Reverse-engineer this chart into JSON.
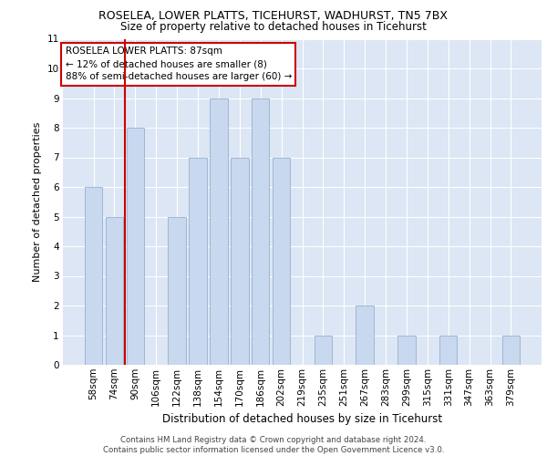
{
  "title1": "ROSELEA, LOWER PLATTS, TICEHURST, WADHURST, TN5 7BX",
  "title2": "Size of property relative to detached houses in Ticehurst",
  "xlabel": "Distribution of detached houses by size in Ticehurst",
  "ylabel": "Number of detached properties",
  "categories": [
    "58sqm",
    "74sqm",
    "90sqm",
    "106sqm",
    "122sqm",
    "138sqm",
    "154sqm",
    "170sqm",
    "186sqm",
    "202sqm",
    "219sqm",
    "235sqm",
    "251sqm",
    "267sqm",
    "283sqm",
    "299sqm",
    "315sqm",
    "331sqm",
    "347sqm",
    "363sqm",
    "379sqm"
  ],
  "values": [
    6,
    5,
    8,
    0,
    5,
    7,
    9,
    7,
    9,
    7,
    0,
    1,
    0,
    2,
    0,
    1,
    0,
    1,
    0,
    0,
    1
  ],
  "bar_color": "#c8d8ee",
  "bar_edgecolor": "#9ab0cc",
  "vline_color": "#cc0000",
  "vline_x": 1.5,
  "background_color": "#ffffff",
  "plot_bg_color": "#dce6f5",
  "grid_color": "#ffffff",
  "annotation_text": "ROSELEA LOWER PLATTS: 87sqm\n← 12% of detached houses are smaller (8)\n88% of semi-detached houses are larger (60) →",
  "annotation_box_edgecolor": "#cc0000",
  "annotation_box_facecolor": "#ffffff",
  "footer_text": "Contains HM Land Registry data © Crown copyright and database right 2024.\nContains public sector information licensed under the Open Government Licence v3.0.",
  "ylim": [
    0,
    11
  ],
  "yticks": [
    0,
    1,
    2,
    3,
    4,
    5,
    6,
    7,
    8,
    9,
    10,
    11
  ],
  "title1_fontsize": 9,
  "title2_fontsize": 8.5,
  "ylabel_fontsize": 8,
  "xlabel_fontsize": 8.5,
  "tick_fontsize": 7.5,
  "annotation_fontsize": 7.5,
  "footer_fontsize": 6.2
}
